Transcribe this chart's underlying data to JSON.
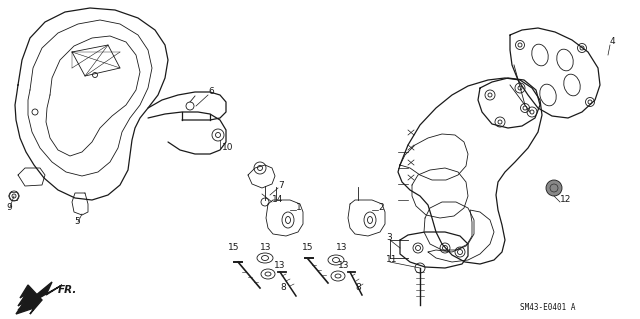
{
  "background_color": "#ffffff",
  "fig_width": 6.4,
  "fig_height": 3.19,
  "dpi": 100,
  "lc": "#1a1a1a",
  "footer_text": "SM43-E0401 A",
  "label_fontsize": 6.5
}
